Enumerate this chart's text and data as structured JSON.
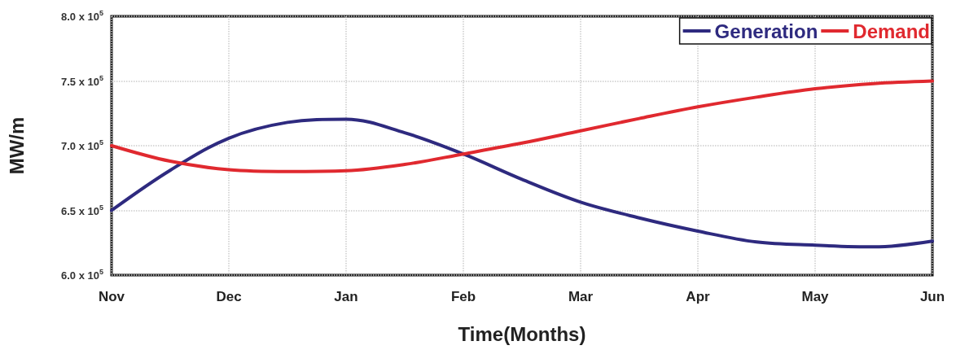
{
  "chart_data": {
    "type": "line",
    "xlabel": "Time(Months)",
    "ylabel": "MW/m",
    "categories": [
      "Nov",
      null,
      "Dec",
      null,
      "Jan",
      null,
      "Feb",
      null,
      "Mar",
      null,
      "Apr",
      null,
      "May",
      null,
      "Jun"
    ],
    "series": [
      {
        "name": "Generation",
        "color": "#2e2a7f",
        "values": [
          650000,
          681000,
          705800,
          718000,
          720500,
          710000,
          693600,
          674000,
          656400,
          644200,
          634000,
          625600,
          623100,
          621800,
          626300
        ]
      },
      {
        "name": "Demand",
        "color": "#e0292f",
        "values": [
          700000,
          688000,
          681400,
          680000,
          680600,
          685500,
          693600,
          702000,
          711500,
          721000,
          730000,
          737500,
          744000,
          748000,
          750000
        ]
      }
    ],
    "ylim": [
      600000,
      800000
    ],
    "yticks": [
      {
        "value": 600000,
        "label": "6.0 x 10$^{5}$"
      },
      {
        "value": 650000,
        "label": "6.5 x 10$^{5}$"
      },
      {
        "value": 700000,
        "label": "7.0 x 10$^{5}$"
      },
      {
        "value": 750000,
        "label": "7.5 x 10$^{5}$"
      },
      {
        "value": 800000,
        "label": "8.0 x 10$^{5}$"
      }
    ],
    "grid": true,
    "legend": "top right",
    "marker": "none",
    "line_style": "solid"
  }
}
